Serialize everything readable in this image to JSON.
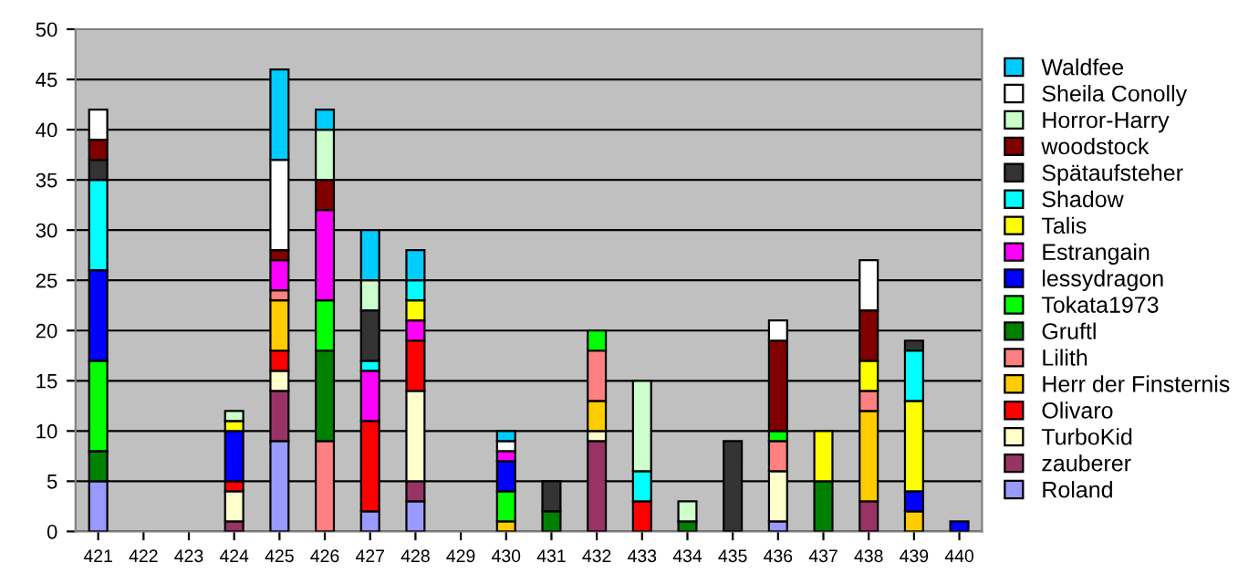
{
  "chart_data": {
    "type": "bar",
    "stacked": true,
    "categories": [
      "421",
      "422",
      "423",
      "424",
      "425",
      "426",
      "427",
      "428",
      "429",
      "430",
      "431",
      "432",
      "433",
      "434",
      "435",
      "436",
      "437",
      "438",
      "439",
      "440"
    ],
    "ylim": [
      0,
      50
    ],
    "yticks": [
      0,
      5,
      10,
      15,
      20,
      25,
      30,
      35,
      40,
      45,
      50
    ],
    "grid": "y",
    "legend": "right",
    "series": [
      {
        "name": "Roland",
        "color": "#9999ff",
        "values": [
          5,
          null,
          null,
          null,
          9,
          null,
          2,
          3,
          null,
          null,
          null,
          null,
          null,
          null,
          null,
          1,
          null,
          null,
          null,
          null
        ]
      },
      {
        "name": "zauberer",
        "color": "#993366",
        "values": [
          null,
          null,
          null,
          1,
          5,
          null,
          null,
          2,
          null,
          null,
          null,
          9,
          null,
          null,
          null,
          null,
          null,
          3,
          null,
          null
        ]
      },
      {
        "name": "TurboKid",
        "color": "#ffffcc",
        "values": [
          null,
          null,
          null,
          3,
          2,
          null,
          null,
          9,
          null,
          null,
          null,
          1,
          null,
          null,
          null,
          5,
          null,
          null,
          null,
          null
        ]
      },
      {
        "name": "Olivaro",
        "color": "#ff0000",
        "values": [
          null,
          null,
          null,
          1,
          2,
          null,
          9,
          5,
          null,
          null,
          null,
          null,
          3,
          null,
          null,
          null,
          null,
          null,
          null,
          null
        ]
      },
      {
        "name": "Herr der Finsternis",
        "color": "#ffcc00",
        "values": [
          null,
          null,
          null,
          null,
          5,
          null,
          null,
          null,
          null,
          1,
          null,
          3,
          null,
          null,
          null,
          null,
          null,
          9,
          2,
          null
        ]
      },
      {
        "name": "Lilith",
        "color": "#ff8080",
        "values": [
          null,
          null,
          null,
          null,
          1,
          9,
          null,
          null,
          null,
          null,
          null,
          5,
          null,
          null,
          null,
          3,
          null,
          2,
          null,
          null
        ]
      },
      {
        "name": "Gruftl",
        "color": "#008000",
        "values": [
          3,
          null,
          null,
          null,
          null,
          9,
          null,
          null,
          null,
          null,
          2,
          null,
          null,
          1,
          null,
          null,
          5,
          null,
          null,
          null
        ]
      },
      {
        "name": "Tokata1973",
        "color": "#00ff00",
        "values": [
          9,
          null,
          null,
          null,
          null,
          5,
          null,
          null,
          null,
          3,
          null,
          2,
          null,
          null,
          null,
          1,
          null,
          null,
          null,
          null
        ]
      },
      {
        "name": "lessydragon",
        "color": "#0000ff",
        "values": [
          9,
          null,
          null,
          5,
          null,
          null,
          null,
          null,
          null,
          3,
          null,
          null,
          null,
          null,
          null,
          null,
          null,
          null,
          2,
          1
        ]
      },
      {
        "name": "Estrangain",
        "color": "#ff00ff",
        "values": [
          null,
          null,
          null,
          null,
          3,
          9,
          5,
          2,
          null,
          1,
          null,
          null,
          null,
          null,
          null,
          null,
          null,
          null,
          null,
          null
        ]
      },
      {
        "name": "Talis",
        "color": "#ffff00",
        "values": [
          null,
          null,
          null,
          1,
          null,
          null,
          null,
          2,
          null,
          null,
          null,
          null,
          null,
          null,
          null,
          null,
          5,
          3,
          9,
          null
        ]
      },
      {
        "name": "Shadow",
        "color": "#00ffff",
        "values": [
          9,
          null,
          null,
          null,
          null,
          null,
          1,
          2,
          null,
          null,
          null,
          null,
          3,
          null,
          null,
          null,
          null,
          null,
          5,
          null
        ]
      },
      {
        "name": "Spätaufsteher",
        "color": "#333333",
        "values": [
          2,
          null,
          null,
          null,
          null,
          null,
          5,
          null,
          null,
          null,
          3,
          null,
          null,
          null,
          9,
          null,
          null,
          null,
          1,
          null
        ]
      },
      {
        "name": "woodstock",
        "color": "#800000",
        "values": [
          2,
          null,
          null,
          null,
          1,
          3,
          null,
          null,
          null,
          null,
          null,
          null,
          null,
          null,
          null,
          9,
          null,
          5,
          null,
          null
        ]
      },
      {
        "name": "Horror-Harry",
        "color": "#ccffcc",
        "values": [
          null,
          null,
          null,
          1,
          null,
          5,
          3,
          null,
          null,
          null,
          null,
          null,
          9,
          2,
          null,
          null,
          null,
          null,
          null,
          null
        ]
      },
      {
        "name": "Sheila Conolly",
        "color": "#ffffff",
        "values": [
          3,
          null,
          null,
          null,
          9,
          null,
          null,
          null,
          null,
          1,
          null,
          null,
          null,
          null,
          null,
          2,
          null,
          5,
          null,
          null
        ]
      },
      {
        "name": "Waldfee",
        "color": "#00ccff",
        "values": [
          null,
          null,
          null,
          null,
          9,
          2,
          5,
          3,
          null,
          1,
          null,
          null,
          null,
          null,
          null,
          null,
          null,
          null,
          null,
          null
        ]
      }
    ]
  }
}
